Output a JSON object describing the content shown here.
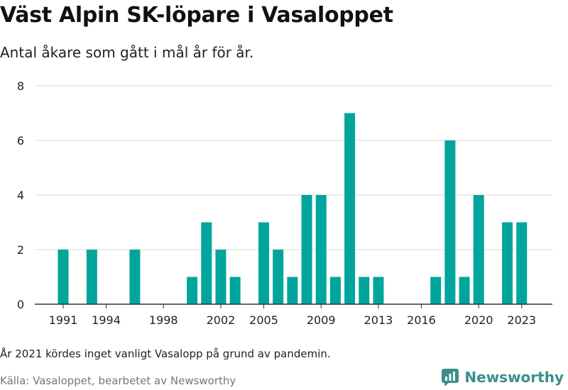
{
  "title": "Väst Alpin SK-löpare i Vasaloppet",
  "subtitle": "Antal åkare som gått i mål år för år.",
  "footnote": "År 2021 kördes inget vanligt Vasalopp på grund av pandemin.",
  "source": "Källa: Vasaloppet, bearbetet av Newsworthy",
  "brand": {
    "name": "Newsworthy",
    "icon": "newsworthy-logo-icon",
    "color": "#3b8f8a"
  },
  "colors": {
    "bar": "#00a59c",
    "grid": "#d9d9d9",
    "axis": "#333333"
  },
  "chart_data": {
    "type": "bar",
    "x": [
      1991,
      1992,
      1993,
      1994,
      1995,
      1996,
      1997,
      1998,
      1999,
      2000,
      2001,
      2002,
      2003,
      2004,
      2005,
      2006,
      2007,
      2008,
      2009,
      2010,
      2011,
      2012,
      2013,
      2014,
      2015,
      2016,
      2017,
      2018,
      2019,
      2020,
      2021,
      2022,
      2023
    ],
    "values": [
      2,
      0,
      2,
      0,
      0,
      2,
      0,
      0,
      0,
      1,
      3,
      2,
      1,
      0,
      3,
      2,
      1,
      4,
      4,
      1,
      7,
      1,
      1,
      0,
      0,
      0,
      1,
      6,
      1,
      4,
      0,
      3,
      3
    ],
    "xticks": [
      "1991",
      "1994",
      "1998",
      "2002",
      "2005",
      "2009",
      "2013",
      "2016",
      "2020",
      "2023"
    ],
    "yticks": [
      "0",
      "2",
      "4",
      "6",
      "8"
    ],
    "ylim": [
      0,
      8
    ],
    "grid": true
  }
}
